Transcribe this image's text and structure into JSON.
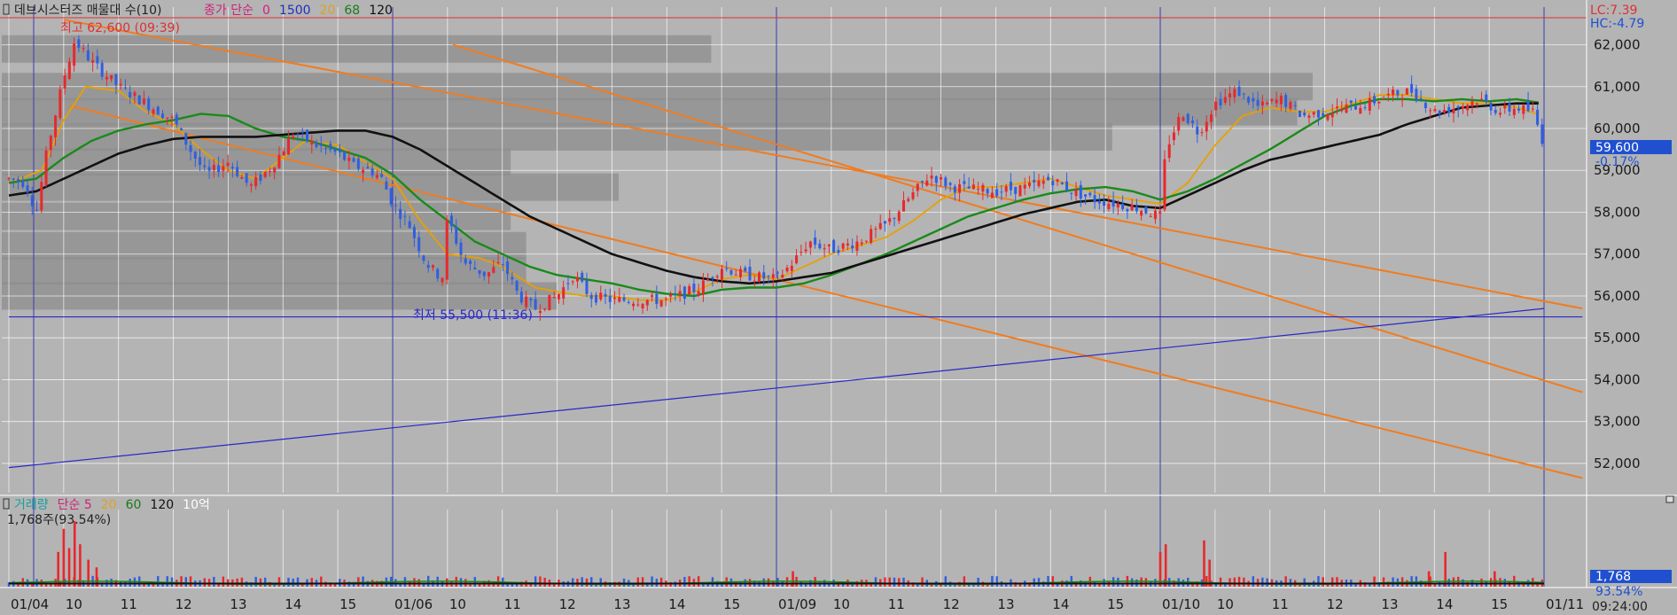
{
  "header": {
    "icon": "square-icon",
    "title": "데브시스터즈 매물대 수(10)",
    "series_legend": [
      {
        "text": "종가 단순",
        "color": "#d0207a"
      },
      {
        "text": "0",
        "color": "#d0207a"
      },
      {
        "text": "1500",
        "color": "#2030c0"
      },
      {
        "text": "20",
        "color": "#e0a020"
      },
      {
        "text": "68",
        "color": "#1a7a1a"
      },
      {
        "text": "120",
        "color": "#111111"
      }
    ],
    "high_label": "최고 62,600 (09:39)",
    "low_label": "최저 55,500 (11:36)"
  },
  "right_info": {
    "lc": "LC:7.39",
    "hc": "HC:-4.79",
    "price_badge": "59,600",
    "change": "-0.17%",
    "volume_badge": "1,768",
    "volume_pct": "93.54%",
    "time": "09:24:00"
  },
  "volume_header": {
    "legend": [
      {
        "text": "거래량",
        "color": "#1aa0a0"
      },
      {
        "text": "단순 5",
        "color": "#d0207a"
      },
      {
        "text": "20",
        "color": "#e0a020"
      },
      {
        "text": "60",
        "color": "#1a7a1a"
      },
      {
        "text": "120",
        "color": "#111111"
      },
      {
        "text": "10억",
        "color": "#ffffff"
      }
    ],
    "summary": "1,768주(93.54%)"
  },
  "x_labels": [
    "01/04",
    "10",
    "11",
    "12",
    "13",
    "14",
    "15",
    "01/06",
    "10",
    "11",
    "12",
    "13",
    "14",
    "15",
    "01/09",
    "10",
    "11",
    "12",
    "13",
    "14",
    "15",
    "01/10",
    "10",
    "11",
    "12",
    "13",
    "14",
    "15",
    "01/11"
  ],
  "colors": {
    "background": "#b4b4b4",
    "grid": "#ffffff",
    "up": "#e8282d",
    "down": "#2f5fe0",
    "ma_short": "#e8a000",
    "ma_mid": "#1a8a1a",
    "ma_long": "#111111",
    "trend": "#f07c20",
    "support": "#2828c8",
    "high_line": "#e03030",
    "volume_profile": "#8e8e8e"
  },
  "chart_data": {
    "type": "candlestick",
    "title": "데브시스터즈 매물대 수(10)",
    "y_ticks": [
      52000,
      53000,
      54000,
      55000,
      56000,
      57000,
      58000,
      59000,
      60000,
      61000,
      62000
    ],
    "ylim": [
      51300,
      62900
    ],
    "x_labels": [
      "01/04",
      "10",
      "11",
      "12",
      "13",
      "14",
      "15",
      "01/06",
      "10",
      "11",
      "12",
      "13",
      "14",
      "15",
      "01/09",
      "10",
      "11",
      "12",
      "13",
      "14",
      "15",
      "01/10",
      "10",
      "11",
      "12",
      "13",
      "14",
      "15",
      "01/11"
    ],
    "day_boundaries": [
      "01/06",
      "01/09",
      "01/10",
      "01/11"
    ],
    "high": {
      "price": 62600,
      "time": "09:39"
    },
    "low": {
      "price": 55500,
      "time": "11:36"
    },
    "last_price": 59600,
    "price_anchors": [
      [
        0,
        58800
      ],
      [
        0.3,
        58700
      ],
      [
        0.5,
        58000
      ],
      [
        0.7,
        59500
      ],
      [
        1.0,
        61200
      ],
      [
        1.2,
        62100
      ],
      [
        1.5,
        61600
      ],
      [
        2.0,
        61000
      ],
      [
        2.5,
        60600
      ],
      [
        3.0,
        60200
      ],
      [
        3.3,
        59500
      ],
      [
        3.6,
        58900
      ],
      [
        4.0,
        59200
      ],
      [
        4.4,
        58600
      ],
      [
        4.8,
        59100
      ],
      [
        5.2,
        59900
      ],
      [
        5.6,
        59600
      ],
      [
        6.0,
        59400
      ],
      [
        6.3,
        59100
      ],
      [
        6.6,
        59000
      ],
      [
        6.8,
        58800
      ],
      [
        7.0,
        58200
      ],
      [
        7.3,
        57700
      ],
      [
        7.6,
        56800
      ],
      [
        7.9,
        56400
      ],
      [
        8.0,
        57900
      ],
      [
        8.3,
        56800
      ],
      [
        8.7,
        56500
      ],
      [
        9.0,
        56800
      ],
      [
        9.3,
        56000
      ],
      [
        9.6,
        55700
      ],
      [
        10.0,
        56000
      ],
      [
        10.3,
        56500
      ],
      [
        10.6,
        56000
      ],
      [
        11.0,
        55900
      ],
      [
        11.5,
        55900
      ],
      [
        12.0,
        55900
      ],
      [
        12.6,
        56200
      ],
      [
        13.0,
        56700
      ],
      [
        13.4,
        56500
      ],
      [
        14.0,
        56400
      ],
      [
        14.3,
        56800
      ],
      [
        14.6,
        57300
      ],
      [
        15.0,
        57100
      ],
      [
        15.5,
        57300
      ],
      [
        16.0,
        57700
      ],
      [
        16.4,
        58300
      ],
      [
        16.8,
        58900
      ],
      [
        17.2,
        58600
      ],
      [
        18.0,
        58500
      ],
      [
        18.6,
        58600
      ],
      [
        19.0,
        58800
      ],
      [
        19.4,
        58500
      ],
      [
        19.8,
        58300
      ],
      [
        20.2,
        58200
      ],
      [
        20.6,
        58100
      ],
      [
        21.0,
        57900
      ],
      [
        21.1,
        59500
      ],
      [
        21.4,
        60400
      ],
      [
        21.7,
        59900
      ],
      [
        22.0,
        60600
      ],
      [
        22.4,
        60900
      ],
      [
        22.8,
        60500
      ],
      [
        23.2,
        60700
      ],
      [
        23.6,
        60300
      ],
      [
        24.0,
        60400
      ],
      [
        24.4,
        60500
      ],
      [
        24.8,
        60600
      ],
      [
        25.2,
        60800
      ],
      [
        25.6,
        60900
      ],
      [
        26.0,
        60400
      ],
      [
        26.4,
        60500
      ],
      [
        26.8,
        60700
      ],
      [
        27.2,
        60400
      ],
      [
        27.5,
        60500
      ],
      [
        27.8,
        60400
      ],
      [
        28.0,
        59600
      ]
    ],
    "ma_short_anchors": [
      [
        0,
        58700
      ],
      [
        0.6,
        59000
      ],
      [
        1.0,
        60200
      ],
      [
        1.4,
        61000
      ],
      [
        2.0,
        60900
      ],
      [
        2.5,
        60400
      ],
      [
        3.0,
        60100
      ],
      [
        3.5,
        59500
      ],
      [
        4.0,
        59000
      ],
      [
        4.5,
        58800
      ],
      [
        5.0,
        59300
      ],
      [
        5.4,
        59700
      ],
      [
        6.0,
        59600
      ],
      [
        6.5,
        59200
      ],
      [
        7.0,
        58800
      ],
      [
        7.5,
        57800
      ],
      [
        8.0,
        57000
      ],
      [
        8.6,
        56900
      ],
      [
        9.0,
        56700
      ],
      [
        9.6,
        56200
      ],
      [
        10.0,
        56100
      ],
      [
        10.5,
        56000
      ],
      [
        11.0,
        56000
      ],
      [
        11.5,
        55900
      ],
      [
        12.0,
        55900
      ],
      [
        12.5,
        56100
      ],
      [
        13.0,
        56400
      ],
      [
        13.5,
        56500
      ],
      [
        14.0,
        56400
      ],
      [
        14.5,
        56700
      ],
      [
        15.0,
        57000
      ],
      [
        15.5,
        57200
      ],
      [
        16.0,
        57400
      ],
      [
        16.5,
        57800
      ],
      [
        17.0,
        58300
      ],
      [
        17.5,
        58600
      ],
      [
        18.0,
        58600
      ],
      [
        18.5,
        58700
      ],
      [
        19.0,
        58800
      ],
      [
        19.5,
        58600
      ],
      [
        20.0,
        58400
      ],
      [
        20.5,
        58300
      ],
      [
        21.0,
        58200
      ],
      [
        21.5,
        58700
      ],
      [
        22.0,
        59600
      ],
      [
        22.5,
        60300
      ],
      [
        23.0,
        60500
      ],
      [
        23.5,
        60400
      ],
      [
        24.0,
        60400
      ],
      [
        24.5,
        60600
      ],
      [
        25.0,
        60800
      ],
      [
        25.5,
        60800
      ],
      [
        26.0,
        60700
      ],
      [
        26.5,
        60600
      ],
      [
        27.0,
        60600
      ],
      [
        27.5,
        60500
      ],
      [
        28.0,
        60300
      ]
    ],
    "ma_mid_anchors": [
      [
        0,
        58700
      ],
      [
        0.5,
        58800
      ],
      [
        1.0,
        59300
      ],
      [
        1.5,
        59700
      ],
      [
        2.0,
        59950
      ],
      [
        2.5,
        60100
      ],
      [
        3.0,
        60200
      ],
      [
        3.5,
        60350
      ],
      [
        4.0,
        60300
      ],
      [
        4.5,
        60000
      ],
      [
        5.0,
        59800
      ],
      [
        5.5,
        59700
      ],
      [
        6.0,
        59500
      ],
      [
        6.5,
        59300
      ],
      [
        7.0,
        58900
      ],
      [
        7.5,
        58300
      ],
      [
        8.0,
        57800
      ],
      [
        8.5,
        57300
      ],
      [
        9.0,
        57000
      ],
      [
        9.5,
        56700
      ],
      [
        10.0,
        56500
      ],
      [
        10.5,
        56400
      ],
      [
        11.0,
        56300
      ],
      [
        11.5,
        56150
      ],
      [
        12.0,
        56050
      ],
      [
        12.5,
        56000
      ],
      [
        13.0,
        56150
      ],
      [
        13.5,
        56200
      ],
      [
        14.0,
        56200
      ],
      [
        14.5,
        56300
      ],
      [
        15.0,
        56500
      ],
      [
        15.5,
        56750
      ],
      [
        16.0,
        57000
      ],
      [
        16.5,
        57300
      ],
      [
        17.0,
        57600
      ],
      [
        17.5,
        57900
      ],
      [
        18.0,
        58100
      ],
      [
        18.5,
        58300
      ],
      [
        19.0,
        58450
      ],
      [
        19.5,
        58550
      ],
      [
        20.0,
        58600
      ],
      [
        20.5,
        58500
      ],
      [
        21.0,
        58300
      ],
      [
        21.5,
        58500
      ],
      [
        22.0,
        58800
      ],
      [
        22.5,
        59150
      ],
      [
        23.0,
        59500
      ],
      [
        23.5,
        59900
      ],
      [
        24.0,
        60300
      ],
      [
        24.5,
        60550
      ],
      [
        25.0,
        60700
      ],
      [
        25.5,
        60700
      ],
      [
        26.0,
        60650
      ],
      [
        26.5,
        60700
      ],
      [
        27.0,
        60650
      ],
      [
        27.5,
        60700
      ],
      [
        28.0,
        60600
      ]
    ],
    "ma_long_anchors": [
      [
        0,
        58400
      ],
      [
        0.5,
        58500
      ],
      [
        1.0,
        58800
      ],
      [
        1.5,
        59100
      ],
      [
        2.0,
        59400
      ],
      [
        2.5,
        59600
      ],
      [
        3.0,
        59750
      ],
      [
        3.5,
        59800
      ],
      [
        4.0,
        59800
      ],
      [
        4.5,
        59800
      ],
      [
        5.0,
        59850
      ],
      [
        5.5,
        59900
      ],
      [
        6.0,
        59950
      ],
      [
        6.5,
        59950
      ],
      [
        7.0,
        59800
      ],
      [
        7.5,
        59500
      ],
      [
        8.0,
        59100
      ],
      [
        8.5,
        58700
      ],
      [
        9.0,
        58300
      ],
      [
        9.5,
        57900
      ],
      [
        10.0,
        57600
      ],
      [
        10.5,
        57300
      ],
      [
        11.0,
        57000
      ],
      [
        11.5,
        56800
      ],
      [
        12.0,
        56600
      ],
      [
        12.5,
        56450
      ],
      [
        13.0,
        56350
      ],
      [
        13.5,
        56300
      ],
      [
        14.0,
        56350
      ],
      [
        14.5,
        56450
      ],
      [
        15.0,
        56550
      ],
      [
        15.5,
        56750
      ],
      [
        16.0,
        56950
      ],
      [
        16.5,
        57150
      ],
      [
        17.0,
        57350
      ],
      [
        17.5,
        57550
      ],
      [
        18.0,
        57750
      ],
      [
        18.5,
        57950
      ],
      [
        19.0,
        58100
      ],
      [
        19.5,
        58250
      ],
      [
        20.0,
        58300
      ],
      [
        20.5,
        58150
      ],
      [
        21.0,
        58100
      ],
      [
        21.5,
        58400
      ],
      [
        22.0,
        58700
      ],
      [
        22.5,
        59000
      ],
      [
        23.0,
        59250
      ],
      [
        23.5,
        59400
      ],
      [
        24.0,
        59550
      ],
      [
        24.5,
        59700
      ],
      [
        25.0,
        59850
      ],
      [
        25.5,
        60100
      ],
      [
        26.0,
        60300
      ],
      [
        26.5,
        60500
      ],
      [
        27.0,
        60550
      ],
      [
        27.5,
        60600
      ],
      [
        28.0,
        60600
      ]
    ],
    "volume_profile": [
      {
        "price": 61900,
        "w": 0.46
      },
      {
        "price": 61000,
        "w": 0.85
      },
      {
        "price": 60400,
        "w": 0.84
      },
      {
        "price": 59800,
        "w": 0.72
      },
      {
        "price": 59200,
        "w": 0.33
      },
      {
        "price": 58600,
        "w": 0.4
      },
      {
        "price": 57900,
        "w": 0.33
      },
      {
        "price": 57200,
        "w": 0.34
      },
      {
        "price": 56600,
        "w": 0.34
      },
      {
        "price": 56000,
        "w": 0.36
      }
    ],
    "trend_lines": [
      {
        "from": [
          1.0,
          62600
        ],
        "to": [
          28.7,
          55700
        ]
      },
      {
        "from": [
          8.1,
          62000
        ],
        "to": [
          28.7,
          53700
        ]
      },
      {
        "from": [
          1.1,
          60550
        ],
        "to": [
          28.7,
          51650
        ]
      }
    ],
    "support_lines": [
      {
        "from": [
          0,
          55500
        ],
        "to": [
          28.7,
          55500
        ],
        "kind": "horizontal_low"
      },
      {
        "from": [
          0,
          51900
        ],
        "to": [
          28.0,
          55700
        ],
        "kind": "rising"
      }
    ],
    "volume_spikes": [
      {
        "x": 0.9,
        "v": 0.45
      },
      {
        "x": 1.0,
        "v": 0.75
      },
      {
        "x": 1.1,
        "v": 0.5
      },
      {
        "x": 1.2,
        "v": 0.85
      },
      {
        "x": 1.3,
        "v": 0.55
      },
      {
        "x": 1.45,
        "v": 0.35
      },
      {
        "x": 1.6,
        "v": 0.25
      },
      {
        "x": 21.0,
        "v": 0.45
      },
      {
        "x": 21.1,
        "v": 0.55
      },
      {
        "x": 21.8,
        "v": 0.6
      },
      {
        "x": 21.9,
        "v": 0.35
      },
      {
        "x": 26.2,
        "v": 0.45
      },
      {
        "x": 25.9,
        "v": 0.2
      },
      {
        "x": 14.3,
        "v": 0.2
      },
      {
        "x": 27.1,
        "v": 0.2
      }
    ]
  }
}
